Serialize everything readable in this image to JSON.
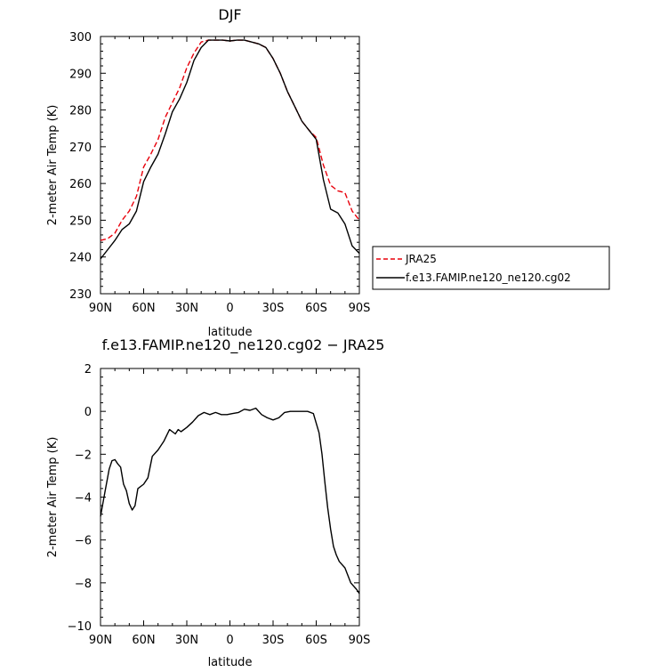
{
  "chart_data": [
    {
      "type": "line",
      "title": "DJF",
      "xlabel": "latitude",
      "ylabel": "2-meter Air Temp (K)",
      "xlim": [
        90,
        -90
      ],
      "ylim": [
        230,
        300
      ],
      "xticks": [
        90,
        60,
        30,
        0,
        -30,
        -60,
        -90
      ],
      "xtick_labels": [
        "90N",
        "60N",
        "30N",
        "0",
        "30S",
        "60S",
        "90S"
      ],
      "yticks": [
        230,
        240,
        250,
        260,
        270,
        280,
        290,
        300
      ],
      "ytick_labels": [
        "230",
        "240",
        "250",
        "260",
        "270",
        "280",
        "290",
        "300"
      ],
      "grid": false,
      "legend": {
        "placement": "right, outside plot"
      },
      "series": [
        {
          "name": "JRA25",
          "color": "#e8000b",
          "dash": "dashed",
          "x": [
            90,
            85,
            80,
            75,
            70,
            65,
            60,
            55,
            50,
            45,
            40,
            35,
            30,
            25,
            20,
            15,
            10,
            5,
            0,
            -5,
            -10,
            -15,
            -20,
            -25,
            -30,
            -35,
            -40,
            -45,
            -50,
            -55,
            -60,
            -65,
            -70,
            -75,
            -80,
            -85,
            -90
          ],
          "y": [
            244.5,
            245,
            246.5,
            250,
            252.5,
            256.5,
            264.5,
            268,
            272,
            278,
            282,
            286,
            291.5,
            295.5,
            298.5,
            299,
            299,
            299,
            298.8,
            299,
            299,
            298.5,
            298,
            297,
            294,
            290,
            285,
            281,
            277,
            274.5,
            272.5,
            265,
            259.5,
            258,
            257.5,
            252.5,
            250
          ]
        },
        {
          "name": "f.e13.FAMIP.ne120_ne120.cg02",
          "color": "#000000",
          "dash": "solid",
          "x": [
            90,
            85,
            80,
            75,
            70,
            65,
            60,
            55,
            50,
            45,
            40,
            35,
            30,
            25,
            20,
            15,
            10,
            5,
            0,
            -5,
            -10,
            -15,
            -20,
            -25,
            -30,
            -35,
            -40,
            -45,
            -50,
            -55,
            -60,
            -65,
            -70,
            -75,
            -80,
            -85,
            -90
          ],
          "y": [
            239.5,
            242,
            244.5,
            247.5,
            249,
            252.5,
            260.5,
            264.5,
            268,
            273.5,
            279.5,
            283,
            287.5,
            293.5,
            297,
            299,
            299,
            299,
            298.8,
            299,
            299,
            298.5,
            298,
            297,
            294,
            290,
            285,
            281,
            277,
            274.5,
            272,
            261,
            253,
            252,
            249,
            243,
            241
          ]
        }
      ]
    },
    {
      "type": "line",
      "title": "f.e13.FAMIP.ne120_ne120.cg02 − JRA25",
      "xlabel": "latitude",
      "ylabel": "2-meter Air Temp (K)",
      "xlim": [
        90,
        -90
      ],
      "ylim": [
        -10,
        2
      ],
      "xticks": [
        90,
        60,
        30,
        0,
        -30,
        -60,
        -90
      ],
      "xtick_labels": [
        "90N",
        "60N",
        "30N",
        "0",
        "30S",
        "60S",
        "90S"
      ],
      "yticks": [
        -10,
        -8,
        -6,
        -4,
        -2,
        0,
        2
      ],
      "ytick_labels": [
        "−10",
        "−8",
        "−6",
        "−4",
        "−2",
        "0",
        "2"
      ],
      "grid": false,
      "series": [
        {
          "color": "#000000",
          "dash": "solid",
          "x": [
            90,
            87,
            84,
            82,
            80,
            78,
            76,
            74,
            72,
            70,
            68,
            66,
            64,
            60,
            57,
            54,
            50,
            46,
            42,
            40,
            38,
            36,
            34,
            30,
            26,
            22,
            18,
            14,
            10,
            6,
            2,
            -2,
            -6,
            -10,
            -14,
            -18,
            -22,
            -26,
            -30,
            -34,
            -38,
            -42,
            -46,
            -50,
            -54,
            -58,
            -62,
            -64,
            -66,
            -68,
            -70,
            -72,
            -74,
            -76,
            -80,
            -84,
            -88,
            -90
          ],
          "y": [
            -4.9,
            -3.8,
            -2.7,
            -2.3,
            -2.25,
            -2.45,
            -2.6,
            -3.4,
            -3.7,
            -4.3,
            -4.6,
            -4.4,
            -3.6,
            -3.4,
            -3.1,
            -2.1,
            -1.8,
            -1.4,
            -0.85,
            -0.95,
            -1.05,
            -0.85,
            -0.95,
            -0.75,
            -0.5,
            -0.2,
            -0.05,
            -0.15,
            -0.05,
            -0.15,
            -0.15,
            -0.1,
            -0.05,
            0.1,
            0.05,
            0.15,
            -0.15,
            -0.3,
            -0.4,
            -0.3,
            -0.05,
            0.0,
            0.0,
            0.0,
            0.0,
            -0.1,
            -1.0,
            -2.0,
            -3.3,
            -4.5,
            -5.5,
            -6.3,
            -6.7,
            -7.0,
            -7.3,
            -8.0,
            -8.3,
            -8.5
          ]
        }
      ]
    }
  ]
}
